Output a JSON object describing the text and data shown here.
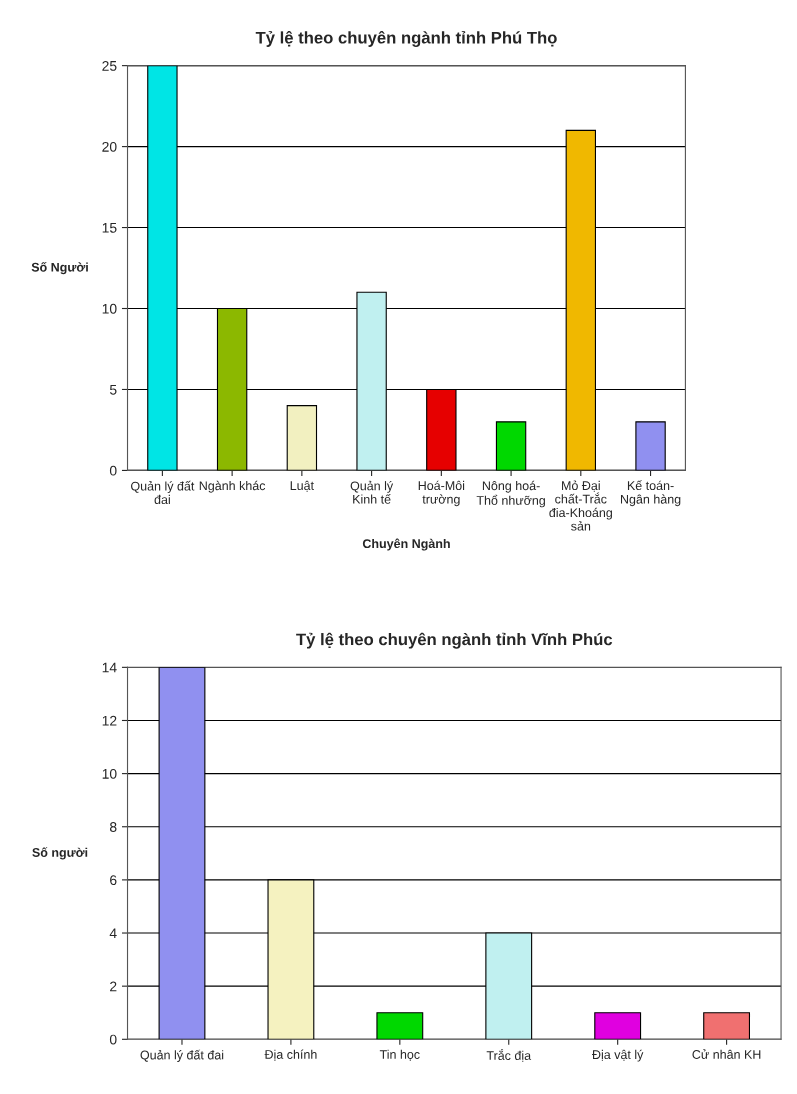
{
  "chart_data": [
    {
      "type": "bar",
      "title": "Tỷ lệ theo chuyên ngành tỉnh Phú Thọ",
      "xlabel": "Chuyên Ngành",
      "ylabel": "Số Người",
      "categories": [
        "Quản lý đất\nđai",
        "Ngành khác",
        "Luật",
        "Quản lý\nKinh tế",
        "Hoá-Môi\ntrường",
        "Nông hoá-\nThổ nhưỡng",
        "Mỏ Đại\nchất-Trắc\nđia-Khoáng\nsản",
        "Kế toán-\nNgân hàng"
      ],
      "values": [
        25,
        10,
        4,
        11,
        5,
        3,
        21,
        3
      ],
      "colors": [
        "#00e5e5",
        "#8cb800",
        "#f2f0c0",
        "#c0f0f0",
        "#e60000",
        "#00d800",
        "#f0b800",
        "#9090f0"
      ],
      "ylim": [
        0,
        25
      ],
      "yticks": [
        0,
        5,
        10,
        15,
        20,
        25
      ],
      "grid": "y"
    },
    {
      "type": "bar",
      "title": "Tỷ lệ theo chuyên ngành tỉnh Vĩnh Phúc",
      "ylabel": "Số người",
      "categories": [
        "Quản lý đất đai",
        "Địa chính",
        "Tin học",
        "Trắc địa",
        "Địa vật lý",
        "Cử nhân KH"
      ],
      "values": [
        14,
        6,
        1,
        4,
        1,
        1
      ],
      "colors": [
        "#9090f0",
        "#f5f2c0",
        "#00d800",
        "#c0f0f0",
        "#e000e0",
        "#f07070"
      ],
      "ylim": [
        0,
        14
      ],
      "yticks": [
        0,
        2,
        4,
        6,
        8,
        10,
        12,
        14
      ],
      "grid": "y"
    }
  ]
}
